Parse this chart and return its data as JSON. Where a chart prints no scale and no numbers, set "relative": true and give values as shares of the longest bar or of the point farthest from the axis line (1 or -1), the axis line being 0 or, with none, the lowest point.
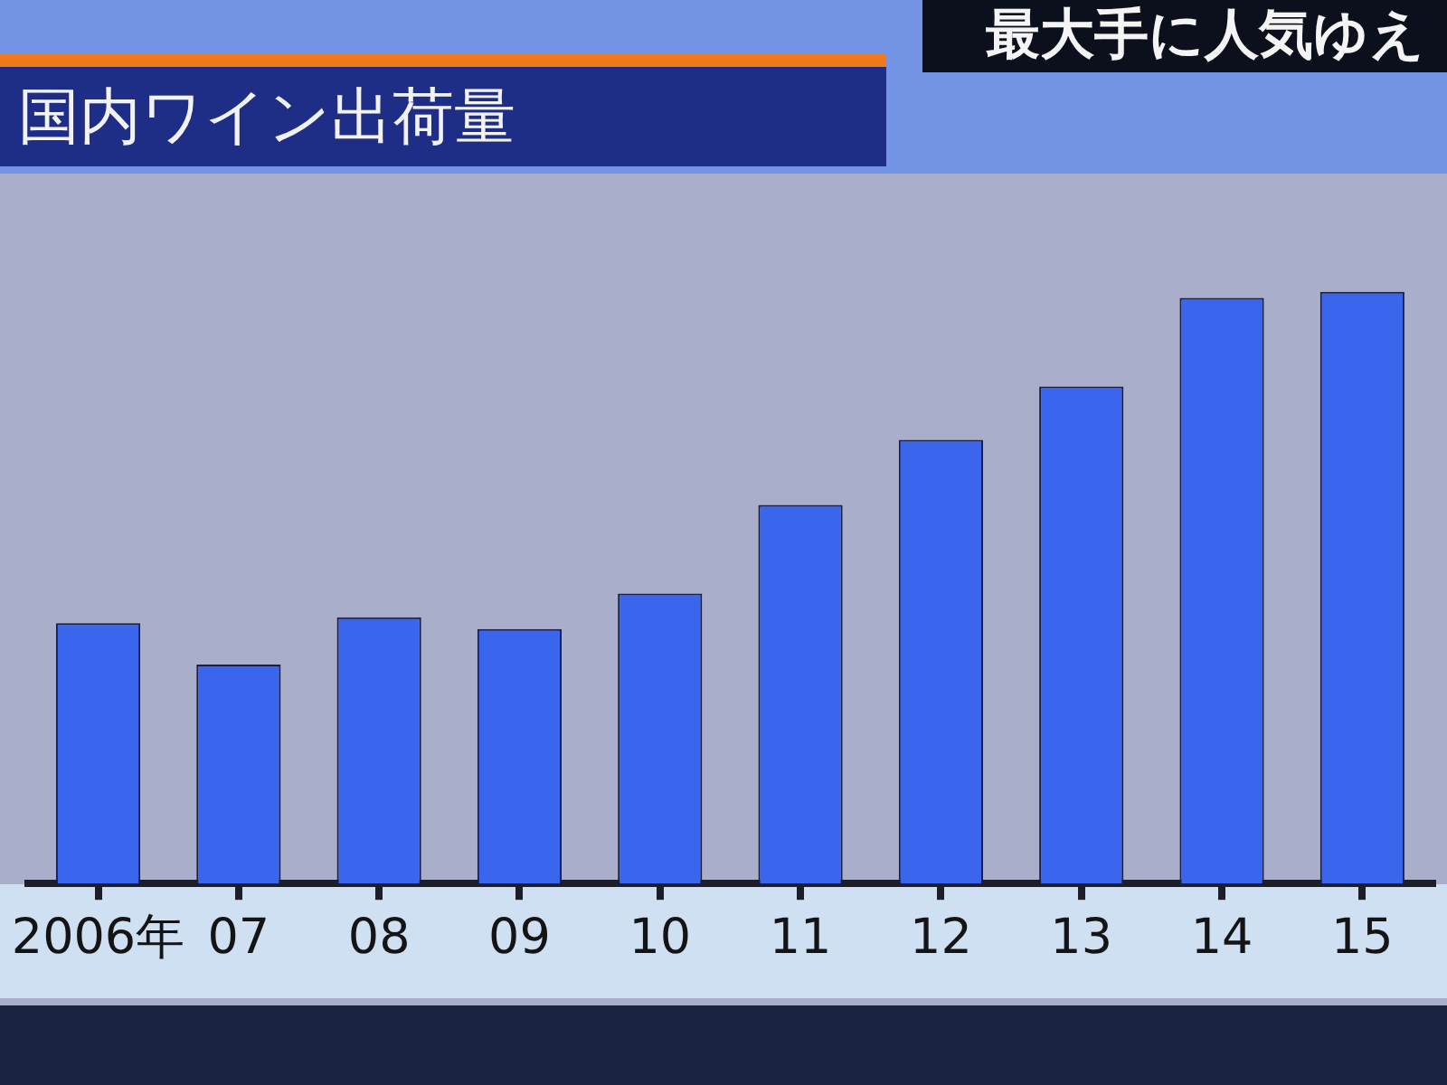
{
  "chart_data": {
    "type": "bar",
    "title": "国内ワイン出荷量",
    "annotations": [
      "最大手に人気ゆえ"
    ],
    "categories": [
      "2006年",
      "07",
      "08",
      "09",
      "10",
      "11",
      "12",
      "13",
      "14",
      "15"
    ],
    "values": [
      0.44,
      0.37,
      0.45,
      0.43,
      0.49,
      0.64,
      0.75,
      0.84,
      0.99,
      1
    ],
    "color": "#3a66ee",
    "relative": true
  }
}
